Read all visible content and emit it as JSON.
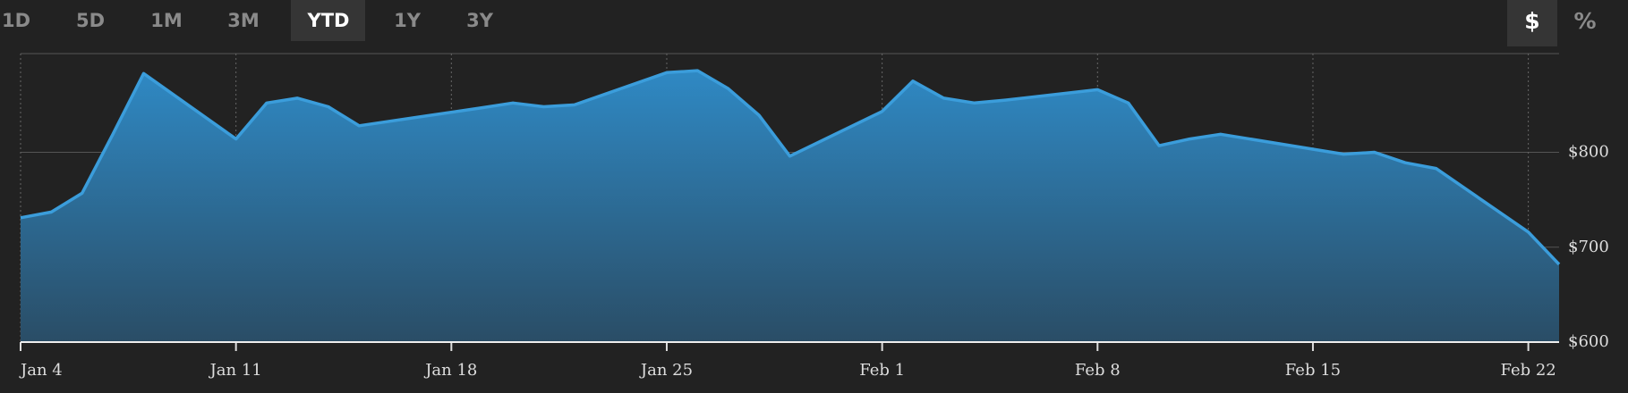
{
  "toolbar": {
    "ranges": [
      "1D",
      "5D",
      "1M",
      "3M",
      "YTD",
      "1Y",
      "3Y"
    ],
    "active_range": "YTD",
    "units": [
      "$",
      "%"
    ],
    "active_unit": "$"
  },
  "chart_data": {
    "type": "area",
    "color": "#3b9ddb",
    "x": [
      "Jan 4",
      "Jan 5",
      "Jan 6",
      "Jan 7",
      "Jan 8",
      "Jan 11",
      "Jan 12",
      "Jan 13",
      "Jan 14",
      "Jan 15",
      "Jan 19",
      "Jan 20",
      "Jan 21",
      "Jan 22",
      "Jan 25",
      "Jan 26",
      "Jan 27",
      "Jan 28",
      "Jan 29",
      "Feb 1",
      "Feb 2",
      "Feb 3",
      "Feb 4",
      "Feb 5",
      "Feb 8",
      "Feb 9",
      "Feb 10",
      "Feb 11",
      "Feb 12",
      "Feb 16",
      "Feb 17",
      "Feb 18",
      "Feb 19",
      "Feb 22",
      "Feb 23"
    ],
    "values": [
      731,
      737,
      757,
      819,
      883,
      814,
      852,
      857,
      848,
      828,
      847,
      852,
      848,
      850,
      884,
      886,
      867,
      839,
      796,
      843,
      875,
      857,
      852,
      855,
      866,
      852,
      807,
      814,
      819,
      798,
      800,
      789,
      783,
      716,
      682
    ],
    "xlim": [
      "Jan 4",
      "Feb 23"
    ],
    "xticks": [
      "Jan 4",
      "Jan 11",
      "Jan 18",
      "Jan 25",
      "Feb 1",
      "Feb 8",
      "Feb 15",
      "Feb 22"
    ],
    "ylim": [
      600,
      904
    ],
    "yticks": [
      {
        "value": 600,
        "label": "$600"
      },
      {
        "value": 700,
        "label": "$700"
      },
      {
        "value": 800,
        "label": "$800"
      }
    ],
    "grid": true
  }
}
